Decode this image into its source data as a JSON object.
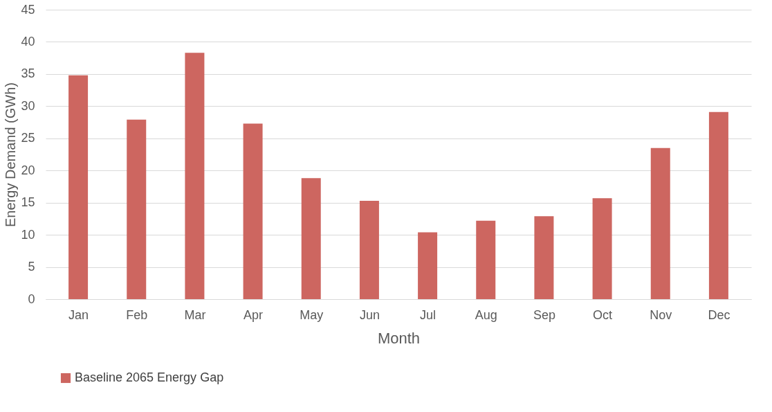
{
  "chart_data": {
    "type": "bar",
    "xlabel": "Month",
    "ylabel": "Energy Demand (GWh)",
    "categories": [
      "Jan",
      "Feb",
      "Mar",
      "Apr",
      "May",
      "Jun",
      "Jul",
      "Aug",
      "Sep",
      "Oct",
      "Nov",
      "Dec"
    ],
    "series": [
      {
        "name": "Baseline 2065 Energy Gap",
        "color": "#cd6660",
        "values": [
          34.8,
          27.9,
          38.3,
          27.3,
          18.8,
          15.3,
          10.4,
          12.2,
          12.9,
          15.7,
          23.5,
          29.1
        ]
      }
    ],
    "ylim": [
      0,
      45
    ],
    "yticks": [
      0,
      5,
      10,
      15,
      20,
      25,
      30,
      35,
      40,
      45
    ],
    "grid": "y",
    "legend": "bottom"
  }
}
